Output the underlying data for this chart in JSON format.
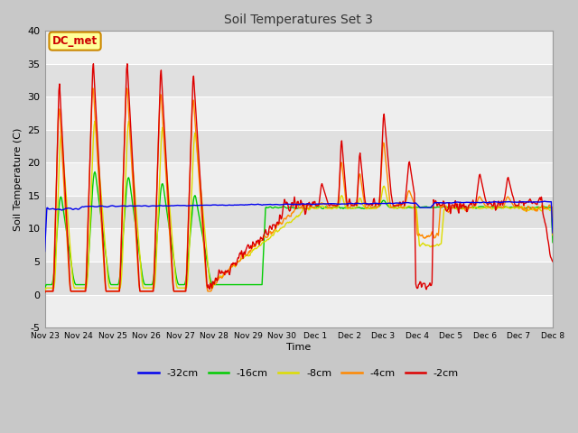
{
  "title": "Soil Temperatures Set 3",
  "xlabel": "Time",
  "ylabel": "Soil Temperature (C)",
  "ylim": [
    -5,
    40
  ],
  "xlim": [
    0,
    360
  ],
  "fig_bg": "#c8c8c8",
  "plot_bg": "#e8e8e8",
  "series_colors": {
    "-32cm": "#0000ee",
    "-16cm": "#00cc00",
    "-8cm": "#dddd00",
    "-4cm": "#ff8800",
    "-2cm": "#dd0000"
  },
  "legend_labels": [
    "-32cm",
    "-16cm",
    "-8cm",
    "-4cm",
    "-2cm"
  ],
  "annotation_text": "DC_met",
  "annotation_bg": "#ffff99",
  "annotation_border": "#cc8800",
  "yticks": [
    -5,
    0,
    5,
    10,
    15,
    20,
    25,
    30,
    35,
    40
  ],
  "xtick_labels": [
    "Nov 23",
    "Nov 24",
    "Nov 25",
    "Nov 26",
    "Nov 27",
    "Nov 28",
    "Nov 29",
    "Nov 30",
    "Dec 1",
    "Dec 2",
    "Dec 3",
    "Dec 4",
    "Dec 5",
    "Dec 6",
    "Dec 7",
    "Dec 8"
  ],
  "xtick_positions": [
    0,
    24,
    48,
    72,
    96,
    120,
    144,
    168,
    192,
    216,
    240,
    264,
    288,
    312,
    336,
    360
  ],
  "grid_color": "#ffffff",
  "band_color_light": "#eeeeee",
  "band_color_dark": "#e0e0e0"
}
